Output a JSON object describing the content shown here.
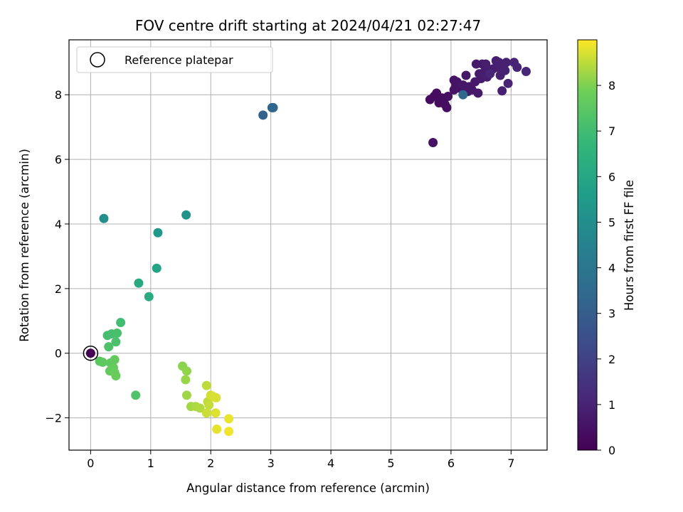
{
  "chart_data": {
    "type": "scatter",
    "title": "FOV centre drift starting at 2024/04/21 02:27:47",
    "xlabel": "Angular distance from reference (arcmin)",
    "ylabel": "Rotation from reference (arcmin)",
    "xlim": [
      -0.36,
      7.6
    ],
    "ylim": [
      -3.0,
      9.7
    ],
    "xticks": [
      0,
      1,
      2,
      3,
      4,
      5,
      6,
      7
    ],
    "yticks": [
      -2,
      0,
      2,
      4,
      6,
      8
    ],
    "grid": true,
    "legend": {
      "position": "top-left",
      "entries": [
        {
          "label": "Reference platepar",
          "marker": "open-circle"
        }
      ]
    },
    "reference_point": {
      "x": 0,
      "y": 0
    },
    "colorbar": {
      "label": "Hours from first FF file",
      "range": [
        0,
        9
      ],
      "ticks": [
        0,
        1,
        2,
        3,
        4,
        5,
        6,
        7,
        8
      ],
      "colormap": "viridis"
    },
    "points": [
      {
        "x": 0.0,
        "y": 0.0,
        "t": 0.0
      },
      {
        "x": 5.65,
        "y": 7.85,
        "t": 0.3
      },
      {
        "x": 5.72,
        "y": 7.95,
        "t": 0.3
      },
      {
        "x": 5.76,
        "y": 8.05,
        "t": 0.3
      },
      {
        "x": 5.8,
        "y": 7.75,
        "t": 0.35
      },
      {
        "x": 5.85,
        "y": 7.9,
        "t": 0.35
      },
      {
        "x": 5.9,
        "y": 7.7,
        "t": 0.4
      },
      {
        "x": 5.93,
        "y": 7.6,
        "t": 0.4
      },
      {
        "x": 5.95,
        "y": 7.95,
        "t": 0.4
      },
      {
        "x": 5.7,
        "y": 6.52,
        "t": 0.5
      },
      {
        "x": 6.05,
        "y": 8.15,
        "t": 0.5
      },
      {
        "x": 6.05,
        "y": 8.45,
        "t": 0.5
      },
      {
        "x": 6.08,
        "y": 8.3,
        "t": 0.5
      },
      {
        "x": 6.1,
        "y": 8.4,
        "t": 0.55
      },
      {
        "x": 6.15,
        "y": 8.2,
        "t": 0.55
      },
      {
        "x": 6.2,
        "y": 8.3,
        "t": 0.6
      },
      {
        "x": 6.25,
        "y": 8.6,
        "t": 0.6
      },
      {
        "x": 6.28,
        "y": 8.1,
        "t": 0.6
      },
      {
        "x": 6.3,
        "y": 8.25,
        "t": 0.65
      },
      {
        "x": 6.35,
        "y": 8.15,
        "t": 0.65
      },
      {
        "x": 6.4,
        "y": 8.4,
        "t": 0.7
      },
      {
        "x": 6.42,
        "y": 8.95,
        "t": 0.7
      },
      {
        "x": 6.45,
        "y": 8.05,
        "t": 0.7
      },
      {
        "x": 6.47,
        "y": 8.65,
        "t": 0.75
      },
      {
        "x": 6.5,
        "y": 8.5,
        "t": 0.75
      },
      {
        "x": 6.52,
        "y": 8.95,
        "t": 0.75
      },
      {
        "x": 6.55,
        "y": 8.7,
        "t": 0.8
      },
      {
        "x": 6.58,
        "y": 8.95,
        "t": 0.8
      },
      {
        "x": 6.6,
        "y": 8.55,
        "t": 0.8
      },
      {
        "x": 6.62,
        "y": 8.75,
        "t": 0.85
      },
      {
        "x": 6.7,
        "y": 8.8,
        "t": 0.85
      },
      {
        "x": 6.75,
        "y": 9.05,
        "t": 0.85
      },
      {
        "x": 6.78,
        "y": 8.85,
        "t": 0.9
      },
      {
        "x": 6.8,
        "y": 9.0,
        "t": 0.9
      },
      {
        "x": 6.82,
        "y": 8.6,
        "t": 0.9
      },
      {
        "x": 6.85,
        "y": 8.12,
        "t": 0.9
      },
      {
        "x": 6.88,
        "y": 8.95,
        "t": 0.95
      },
      {
        "x": 6.9,
        "y": 8.75,
        "t": 0.95
      },
      {
        "x": 6.92,
        "y": 9.0,
        "t": 0.95
      },
      {
        "x": 6.95,
        "y": 8.35,
        "t": 1.0
      },
      {
        "x": 7.05,
        "y": 9.0,
        "t": 1.0
      },
      {
        "x": 7.1,
        "y": 8.85,
        "t": 1.0
      },
      {
        "x": 7.25,
        "y": 8.72,
        "t": 1.05
      },
      {
        "x": 6.65,
        "y": 8.65,
        "t": 1.05
      },
      {
        "x": 6.2,
        "y": 8.0,
        "t": 3.4
      },
      {
        "x": 2.87,
        "y": 7.37,
        "t": 3.2
      },
      {
        "x": 3.02,
        "y": 7.6,
        "t": 3.3
      },
      {
        "x": 3.04,
        "y": 7.6,
        "t": 3.35
      },
      {
        "x": 0.22,
        "y": 4.17,
        "t": 5.0
      },
      {
        "x": 1.59,
        "y": 4.28,
        "t": 5.2
      },
      {
        "x": 1.12,
        "y": 3.73,
        "t": 5.4
      },
      {
        "x": 1.1,
        "y": 2.63,
        "t": 5.9
      },
      {
        "x": 0.8,
        "y": 2.17,
        "t": 6.1
      },
      {
        "x": 0.97,
        "y": 1.75,
        "t": 6.2
      },
      {
        "x": 0.5,
        "y": 0.95,
        "t": 7.0
      },
      {
        "x": 0.28,
        "y": 0.55,
        "t": 7.1
      },
      {
        "x": 0.35,
        "y": 0.6,
        "t": 7.1
      },
      {
        "x": 0.44,
        "y": 0.62,
        "t": 7.15
      },
      {
        "x": 0.42,
        "y": 0.35,
        "t": 7.2
      },
      {
        "x": 0.3,
        "y": 0.2,
        "t": 7.25
      },
      {
        "x": 0.75,
        "y": -1.3,
        "t": 7.3
      },
      {
        "x": 0.15,
        "y": -0.25,
        "t": 7.5
      },
      {
        "x": 0.2,
        "y": -0.28,
        "t": 7.55
      },
      {
        "x": 0.33,
        "y": -0.3,
        "t": 7.6
      },
      {
        "x": 0.4,
        "y": -0.2,
        "t": 7.65
      },
      {
        "x": 0.38,
        "y": -0.45,
        "t": 7.7
      },
      {
        "x": 0.32,
        "y": -0.55,
        "t": 7.7
      },
      {
        "x": 0.4,
        "y": -0.6,
        "t": 7.75
      },
      {
        "x": 0.42,
        "y": -0.7,
        "t": 7.75
      },
      {
        "x": 1.53,
        "y": -0.4,
        "t": 8.1
      },
      {
        "x": 1.6,
        "y": -0.55,
        "t": 8.15
      },
      {
        "x": 1.58,
        "y": -0.82,
        "t": 8.2
      },
      {
        "x": 1.6,
        "y": -1.3,
        "t": 8.25
      },
      {
        "x": 1.67,
        "y": -1.65,
        "t": 8.3
      },
      {
        "x": 1.75,
        "y": -1.65,
        "t": 8.35
      },
      {
        "x": 1.82,
        "y": -1.7,
        "t": 8.4
      },
      {
        "x": 1.93,
        "y": -1.0,
        "t": 8.5
      },
      {
        "x": 1.95,
        "y": -1.5,
        "t": 8.5
      },
      {
        "x": 1.97,
        "y": -1.6,
        "t": 8.55
      },
      {
        "x": 1.93,
        "y": -1.85,
        "t": 8.6
      },
      {
        "x": 2.0,
        "y": -1.3,
        "t": 8.65
      },
      {
        "x": 2.05,
        "y": -1.35,
        "t": 8.7
      },
      {
        "x": 2.09,
        "y": -1.38,
        "t": 8.7
      },
      {
        "x": 2.08,
        "y": -1.85,
        "t": 8.75
      },
      {
        "x": 2.1,
        "y": -2.35,
        "t": 8.8
      },
      {
        "x": 2.3,
        "y": -2.03,
        "t": 8.85
      },
      {
        "x": 2.3,
        "y": -2.42,
        "t": 8.9
      }
    ]
  }
}
